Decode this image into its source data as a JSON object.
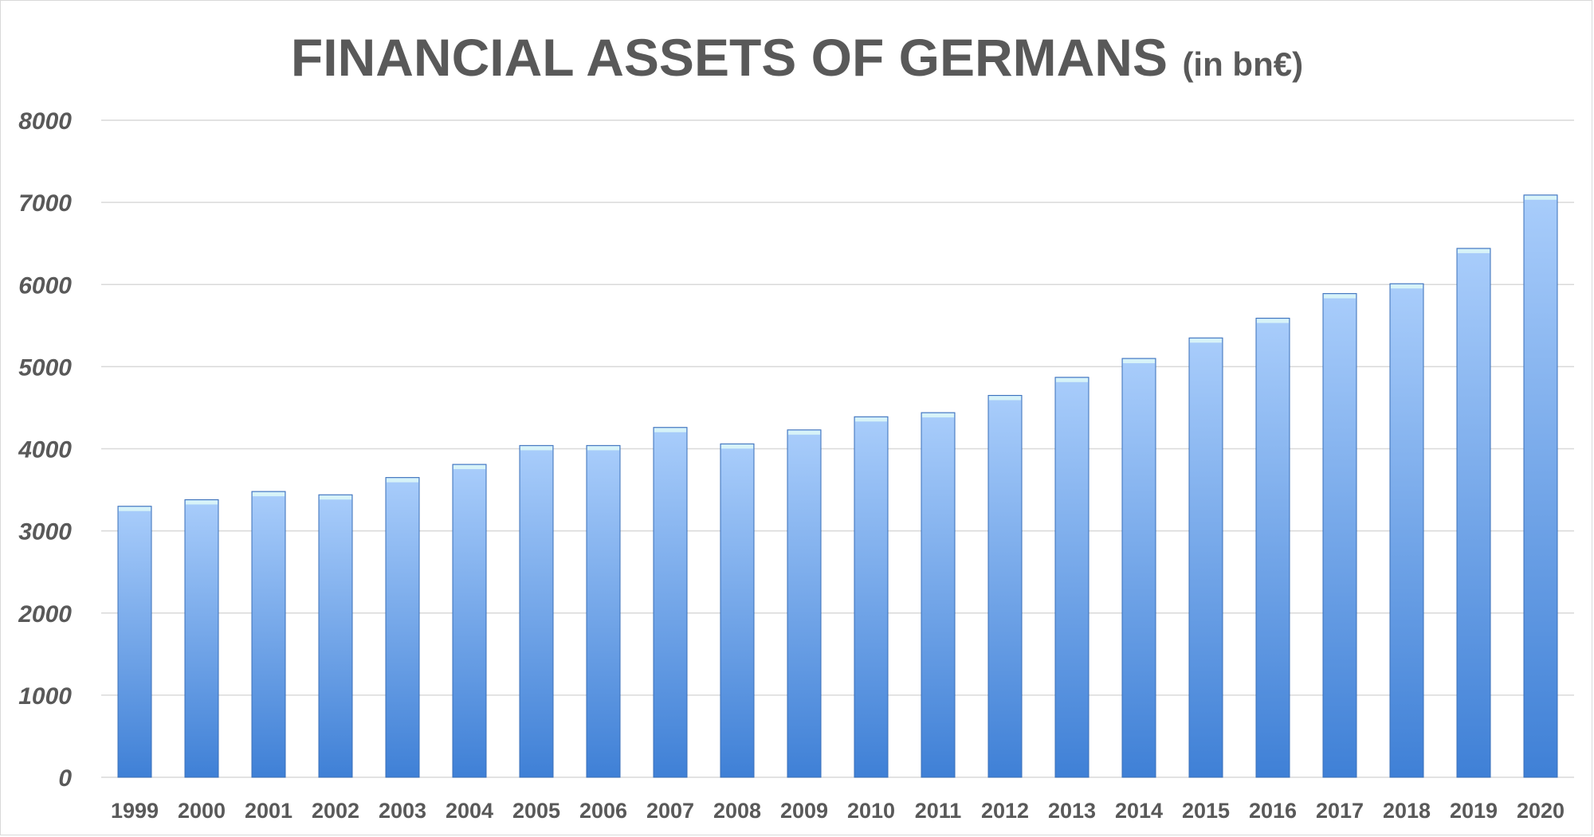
{
  "chart_data": {
    "type": "bar",
    "title": "FINANCIAL ASSETS OF GERMANS",
    "subtitle": "(in bn€)",
    "xlabel": "",
    "ylabel": "",
    "ylim": [
      0,
      8000
    ],
    "yticks": [
      "0",
      "1000",
      "2000",
      "3000",
      "4000",
      "5000",
      "6000",
      "7000",
      "8000"
    ],
    "grid": true,
    "categories": [
      "1999",
      "2000",
      "2001",
      "2002",
      "2003",
      "2004",
      "2005",
      "2006",
      "2007",
      "2008",
      "2009",
      "2010",
      "2011",
      "2012",
      "2013",
      "2014",
      "2015",
      "2016",
      "2017",
      "2018",
      "2019",
      "2020"
    ],
    "values": [
      3300,
      3380,
      3480,
      3440,
      3650,
      3810,
      4040,
      4040,
      4260,
      4060,
      4230,
      4390,
      4440,
      4650,
      4870,
      5100,
      5350,
      5590,
      5890,
      6010,
      6440,
      7090
    ],
    "colors": {
      "bar_top": "#a9cdfb",
      "bar_bottom": "#3f80d6",
      "bar_cap": "#d7f3f8",
      "bar_edge": "#3a6fb8",
      "text": "#595959",
      "grid": "#d9d9d9"
    }
  }
}
